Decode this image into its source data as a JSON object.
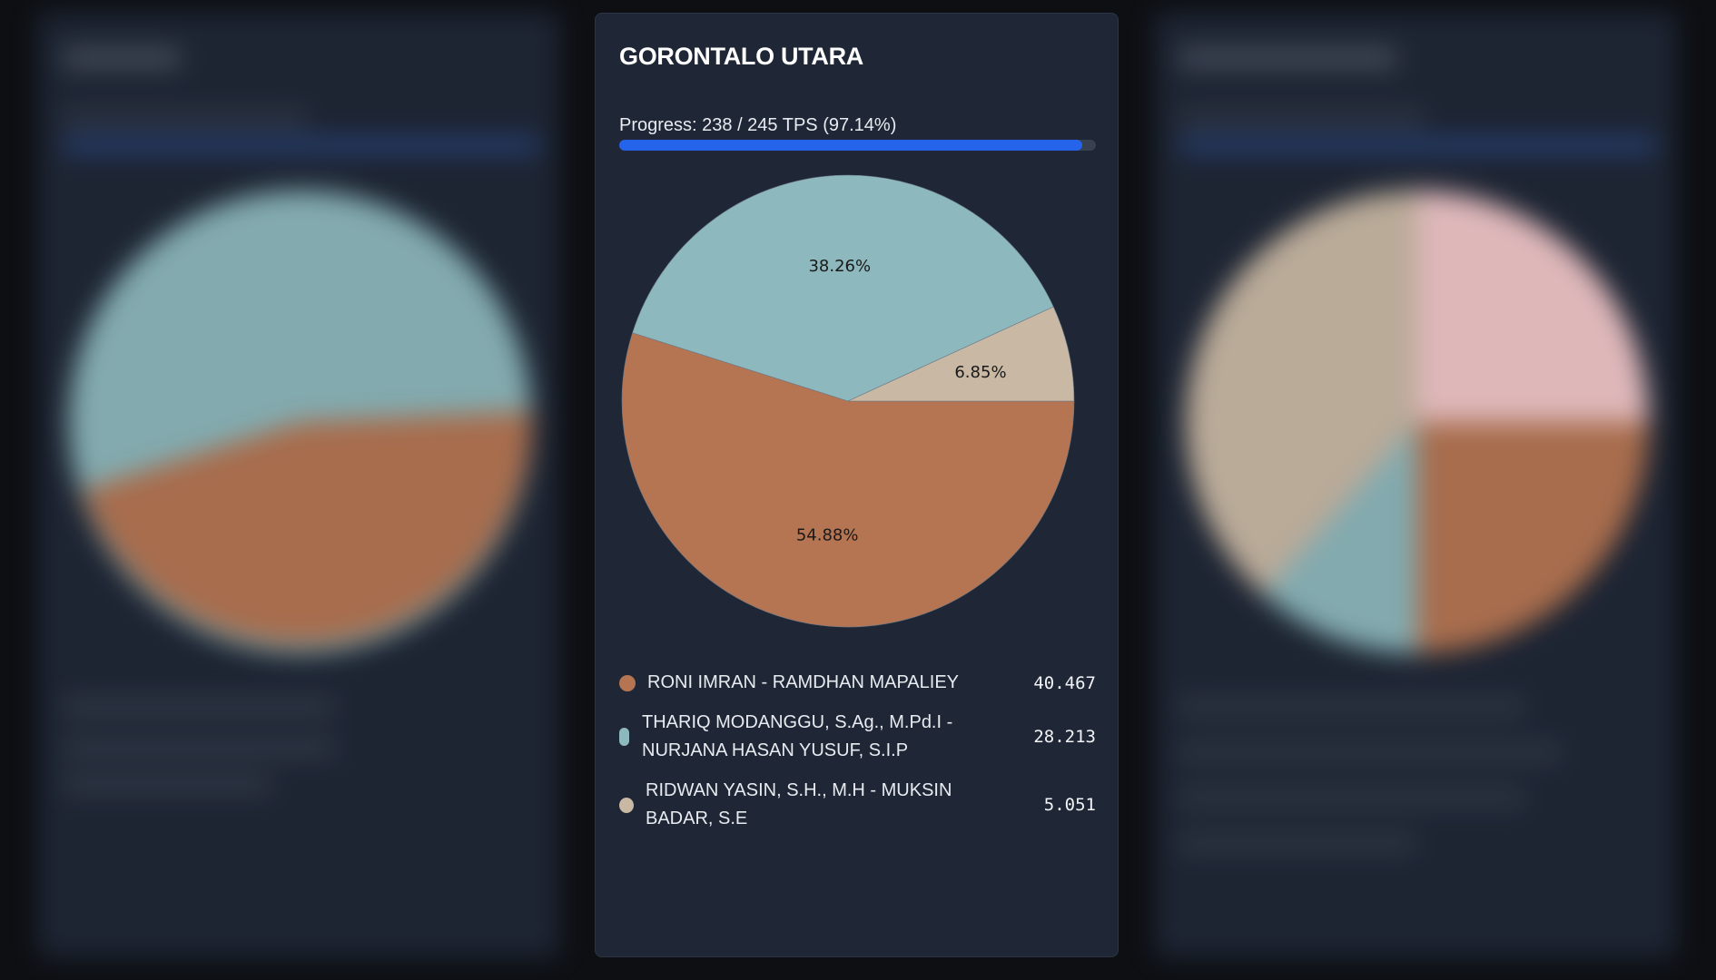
{
  "main_card": {
    "title": "GORONTALO UTARA",
    "progress": {
      "label": "Progress: 238 / 245 TPS (97.14%)",
      "done": 238,
      "total": 245,
      "percent": 97.14,
      "fill_color": "#2563eb",
      "track_color": "#374151"
    },
    "legend": [
      {
        "name": "RONI IMRAN - RAMDHAN MAPALIEY",
        "value": "40.467",
        "color": "#b57552"
      },
      {
        "name": "THARIQ MODANGGU, S.Ag., M.Pd.I - NURJANA HASAN YUSUF, S.I.P",
        "value": "28.213",
        "color": "#8db8bd"
      },
      {
        "name": "RIDWAN YASIN, S.H., M.H - MUKSIN BADAR, S.E",
        "value": "5.051",
        "color": "#c9b8a4"
      }
    ]
  },
  "chart_data": {
    "type": "pie",
    "title": "GORONTALO UTARA",
    "categories": [
      "RONI IMRAN - RAMDHAN MAPALIEY",
      "THARIQ MODANGGU, S.Ag., M.Pd.I - NURJANA HASAN YUSUF, S.I.P",
      "RIDWAN YASIN, S.H., M.H - MUKSIN BADAR, S.E"
    ],
    "values": [
      40467,
      28213,
      5051
    ],
    "percent_labels": [
      "54.88%",
      "38.26%",
      "6.85%"
    ],
    "colors": [
      "#b57552",
      "#8db8bd",
      "#c9b8a4"
    ],
    "legend_position": "bottom"
  },
  "side_cards": {
    "left": {
      "blurred": true,
      "slice_colors": [
        "#8db8bd",
        "#b57552"
      ]
    },
    "right": {
      "blurred": true,
      "slice_colors": [
        "#f0c6c8",
        "#b57552",
        "#8db8bd",
        "#c9b8a4"
      ]
    }
  }
}
